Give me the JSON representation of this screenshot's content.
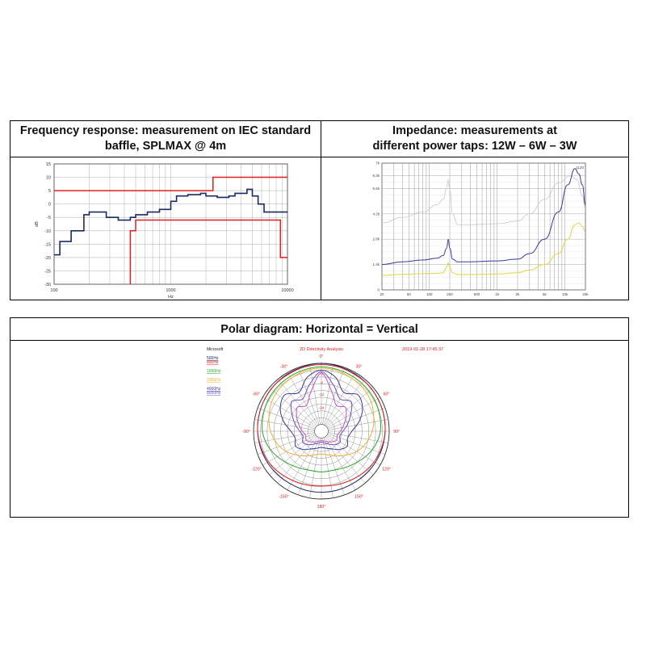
{
  "panels": {
    "freq_header_line1": "Frequency response: measurement on IEC standard",
    "freq_header_line2": "baffle, SPLMAX @ 4m",
    "imp_header_line1": "Impedance: measurements at",
    "imp_header_line2": "different power taps: 12W – 6W – 3W",
    "polar_header": "Polar diagram: Horizontal = Vertical"
  },
  "colors": {
    "red": "#e02020",
    "navy": "#1c2a63",
    "blue": "#3a3a9a",
    "gray": "#c8c8c8",
    "yellow": "#e2d640",
    "green": "#2aa82a",
    "orange": "#f0b030",
    "purple": "#7050c0",
    "magenta": "#c050c0"
  },
  "chart_data": [
    {
      "type": "line",
      "xscale": "log",
      "xlim": [
        100,
        10000
      ],
      "ylim": [
        -30,
        15
      ],
      "ylabel": "dB",
      "xlabel": "Hz",
      "yticks": [
        15,
        10,
        5,
        0,
        -5,
        -10,
        -15,
        -20,
        -25,
        -30
      ],
      "xticks": [
        {
          "v": 100,
          "label": "100"
        },
        {
          "v": 1000,
          "label": "1000"
        },
        {
          "v": 10000,
          "label": "10000"
        }
      ],
      "grid": true,
      "series": [
        {
          "color": "navy",
          "step": true,
          "x": [
            100,
            112,
            125,
            140,
            160,
            180,
            200,
            224,
            250,
            280,
            315,
            355,
            400,
            450,
            500,
            560,
            630,
            710,
            800,
            900,
            1000,
            1120,
            1250,
            1400,
            1600,
            1800,
            2000,
            2240,
            2500,
            2800,
            3150,
            3550,
            4000,
            4500,
            5000,
            5600,
            6300,
            7100,
            8000,
            9000,
            10000
          ],
          "y": [
            -19,
            -14,
            -14,
            -10,
            -10,
            -4,
            -3,
            -3,
            -3,
            -5,
            -5,
            -6,
            -6,
            -5,
            -4,
            -4,
            -3,
            -3,
            -2,
            -2,
            1,
            3,
            3,
            3.5,
            3.5,
            4,
            3,
            3,
            2.5,
            2.5,
            3,
            4,
            4,
            5.5,
            3,
            0,
            -3,
            -3,
            -3,
            -3,
            -3
          ]
        },
        {
          "color": "red",
          "step": true,
          "x": [
            100,
            2300,
            2300,
            10000
          ],
          "y": [
            5,
            5,
            10,
            10
          ]
        },
        {
          "color": "red",
          "step": true,
          "x": [
            450,
            450,
            500,
            500,
            6300,
            6300,
            8700,
            8700,
            10000
          ],
          "y": [
            -30,
            -10,
            -10,
            -6,
            -6,
            -6,
            -10,
            -20,
            -20
          ]
        }
      ]
    },
    {
      "type": "line",
      "xscale": "log",
      "xlim": [
        20,
        20000
      ],
      "ylim": [
        0,
        7000
      ],
      "yticks": [
        {
          "v": 0,
          "label": "0"
        },
        {
          "v": 1400,
          "label": "1.4k"
        },
        {
          "v": 2800,
          "label": "2.8k"
        },
        {
          "v": 4200,
          "label": "4.2k"
        },
        {
          "v": 5600,
          "label": "5.6k"
        },
        {
          "v": 6300,
          "label": "6.3k"
        },
        {
          "v": 7000,
          "label": "7k"
        }
      ],
      "xticks": [
        {
          "v": 20,
          "label": "20"
        },
        {
          "v": 50,
          "label": "50"
        },
        {
          "v": 100,
          "label": "100"
        },
        {
          "v": 200,
          "label": "200"
        },
        {
          "v": 500,
          "label": "500"
        },
        {
          "v": 1000,
          "label": "1k"
        },
        {
          "v": 2000,
          "label": "2k"
        },
        {
          "v": 5000,
          "label": "5k"
        },
        {
          "v": 10000,
          "label": "10k"
        },
        {
          "v": 20000,
          "label": "20k"
        }
      ],
      "corner_label": "1120",
      "grid": true,
      "series": [
        {
          "color": "gray",
          "x": [
            20,
            40,
            80,
            130,
            160,
            180,
            190,
            200,
            220,
            260,
            400,
            1000,
            2000,
            3000,
            5000,
            8000,
            12000,
            15000,
            18000,
            20000
          ],
          "y": [
            3700,
            4000,
            4300,
            4700,
            5000,
            5600,
            6100,
            5500,
            4200,
            3600,
            3600,
            3650,
            3800,
            4200,
            5000,
            5900,
            6300,
            6100,
            5200,
            4500
          ]
        },
        {
          "color": "blue",
          "x": [
            20,
            40,
            80,
            130,
            160,
            180,
            190,
            200,
            220,
            260,
            400,
            1000,
            2000,
            3000,
            5000,
            8000,
            11000,
            14000,
            16000,
            18000,
            20000
          ],
          "y": [
            1400,
            1550,
            1650,
            1750,
            1900,
            2300,
            2800,
            2300,
            1700,
            1550,
            1550,
            1600,
            1700,
            2000,
            2800,
            4300,
            5800,
            6700,
            6400,
            5800,
            4700
          ]
        },
        {
          "color": "yellow",
          "x": [
            20,
            40,
            80,
            130,
            160,
            180,
            190,
            200,
            220,
            260,
            400,
            1000,
            2000,
            3000,
            5000,
            8000,
            11000,
            14000,
            16000,
            18000,
            20000
          ],
          "y": [
            800,
            850,
            900,
            920,
            950,
            1250,
            1500,
            1250,
            950,
            850,
            850,
            880,
            950,
            1100,
            1400,
            2000,
            2800,
            3600,
            3700,
            3500,
            3200
          ]
        }
      ]
    },
    {
      "type": "polar",
      "title": "2D Directivity Analysis",
      "timestamp": "2019-01-28 17:45:37",
      "legend_title": "Microsoft",
      "legend": [
        {
          "label": "500Hz",
          "color": "navy"
        },
        {
          "label": "800Hz",
          "color": "red"
        },
        {
          "label": "1000Hz",
          "color": "green"
        },
        {
          "label": "2000Hz",
          "color": "orange"
        },
        {
          "label": "4000Hz",
          "color": "blue"
        },
        {
          "label": "8000Hz",
          "color": "purple"
        }
      ],
      "angle_labels": [
        {
          "deg": 0,
          "label": "0°"
        },
        {
          "deg": 30,
          "label": "30°"
        },
        {
          "deg": 60,
          "label": "60°"
        },
        {
          "deg": 90,
          "label": "90°"
        },
        {
          "deg": 120,
          "label": "120°"
        },
        {
          "deg": 150,
          "label": "150°"
        },
        {
          "deg": 180,
          "label": "180°"
        },
        {
          "deg": -150,
          "label": "-150°"
        },
        {
          "deg": -120,
          "label": "-120°"
        },
        {
          "deg": -90,
          "label": "-90°"
        },
        {
          "deg": -60,
          "label": "-60°"
        },
        {
          "deg": -30,
          "label": "-30°"
        }
      ],
      "radial_labels": [
        "0",
        "-3",
        "-6",
        "-12",
        "-24"
      ],
      "angles": [
        0,
        15,
        30,
        45,
        60,
        75,
        90,
        105,
        120,
        135,
        150,
        165,
        180,
        195,
        210,
        225,
        240,
        255,
        270,
        285,
        300,
        315,
        330,
        345
      ],
      "series": [
        {
          "color": "navy",
          "r": [
            1.0,
            0.99,
            0.98,
            0.97,
            0.96,
            0.95,
            0.94,
            0.93,
            0.92,
            0.91,
            0.9,
            0.9,
            0.9,
            0.9,
            0.9,
            0.91,
            0.92,
            0.93,
            0.94,
            0.95,
            0.96,
            0.97,
            0.98,
            0.99
          ]
        },
        {
          "color": "red",
          "r": [
            0.98,
            0.98,
            0.97,
            0.97,
            0.96,
            0.95,
            0.94,
            0.92,
            0.9,
            0.87,
            0.84,
            0.82,
            0.81,
            0.82,
            0.84,
            0.87,
            0.9,
            0.92,
            0.94,
            0.95,
            0.96,
            0.97,
            0.97,
            0.98
          ]
        },
        {
          "color": "green",
          "r": [
            0.95,
            0.94,
            0.93,
            0.92,
            0.91,
            0.89,
            0.87,
            0.82,
            0.75,
            0.68,
            0.63,
            0.6,
            0.6,
            0.6,
            0.63,
            0.68,
            0.75,
            0.82,
            0.87,
            0.89,
            0.91,
            0.92,
            0.93,
            0.94
          ]
        },
        {
          "color": "orange",
          "r": [
            0.93,
            0.92,
            0.9,
            0.88,
            0.85,
            0.8,
            0.75,
            0.68,
            0.6,
            0.5,
            0.42,
            0.36,
            0.34,
            0.36,
            0.42,
            0.5,
            0.6,
            0.68,
            0.75,
            0.8,
            0.85,
            0.88,
            0.9,
            0.92
          ]
        },
        {
          "color": "blue",
          "r": [
            0.9,
            0.82,
            0.66,
            0.76,
            0.7,
            0.58,
            0.45,
            0.4,
            0.44,
            0.38,
            0.3,
            0.26,
            0.24,
            0.26,
            0.3,
            0.38,
            0.44,
            0.4,
            0.45,
            0.58,
            0.7,
            0.76,
            0.66,
            0.82
          ]
        },
        {
          "color": "purple",
          "r": [
            0.88,
            0.7,
            0.55,
            0.62,
            0.5,
            0.4,
            0.32,
            0.28,
            0.32,
            0.28,
            0.22,
            0.18,
            0.16,
            0.18,
            0.22,
            0.28,
            0.32,
            0.28,
            0.32,
            0.4,
            0.5,
            0.62,
            0.55,
            0.7
          ]
        },
        {
          "color": "magenta",
          "r": [
            0.86,
            0.6,
            0.44,
            0.5,
            0.42,
            0.34,
            0.28,
            0.24,
            0.26,
            0.22,
            0.18,
            0.15,
            0.14,
            0.15,
            0.18,
            0.22,
            0.26,
            0.24,
            0.28,
            0.34,
            0.42,
            0.5,
            0.44,
            0.6
          ]
        }
      ]
    }
  ]
}
